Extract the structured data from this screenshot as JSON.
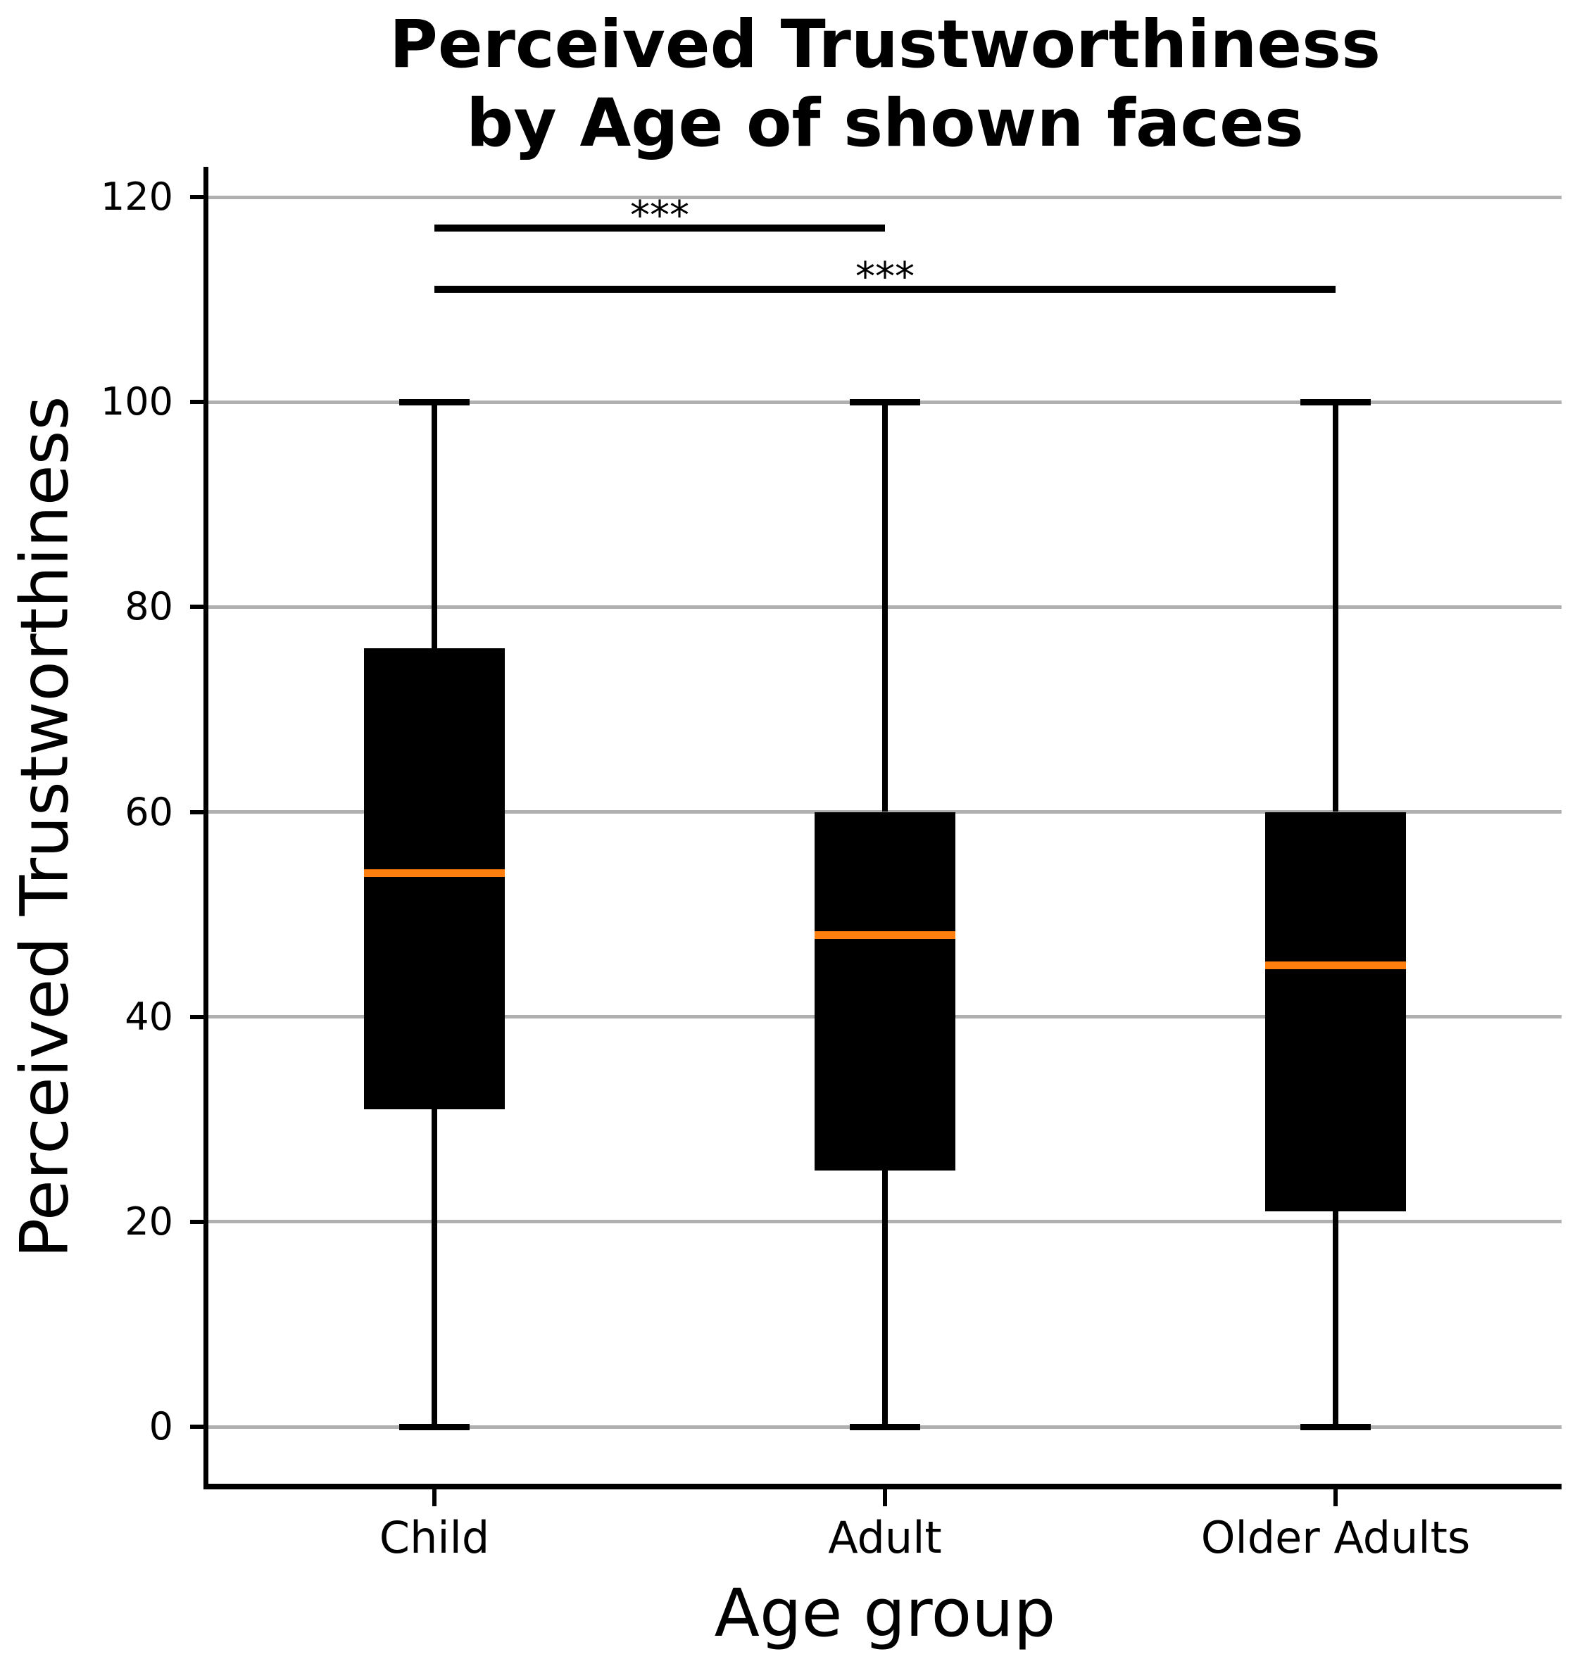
{
  "header": {
    "title_line1": "Perceived Trustworthiness",
    "title_line2": "by Age of shown faces"
  },
  "chart_data": {
    "type": "box",
    "title": "Perceived Trustworthiness by Age of shown faces",
    "xlabel": "Age group",
    "ylabel": "Perceived Trustworthiness",
    "categories": [
      "Child",
      "Adult",
      "Older Adults"
    ],
    "yticks": [
      0,
      20,
      40,
      60,
      80,
      100,
      120
    ],
    "ylim": [
      0,
      120
    ],
    "grid": "horizontal",
    "legend": "none",
    "boxes": [
      {
        "category": "Child",
        "whisker_low": 0,
        "q1": 31,
        "median": 54,
        "q3": 76,
        "whisker_high": 100
      },
      {
        "category": "Adult",
        "whisker_low": 0,
        "q1": 25,
        "median": 48,
        "q3": 60,
        "whisker_high": 100
      },
      {
        "category": "Older Adults",
        "whisker_low": 0,
        "q1": 21,
        "median": 45,
        "q3": 60,
        "whisker_high": 100
      }
    ],
    "annotations": [
      {
        "label": "***",
        "from": "Child",
        "to": "Adult",
        "y": 117
      },
      {
        "label": "***",
        "from": "Child",
        "to": "Older Adults",
        "y": 111
      }
    ],
    "colors": {
      "box_fill": "#000000",
      "median": "#ff7f0e",
      "grid": "#b0b0b0",
      "axis": "#000000",
      "background": "#ffffff"
    }
  }
}
